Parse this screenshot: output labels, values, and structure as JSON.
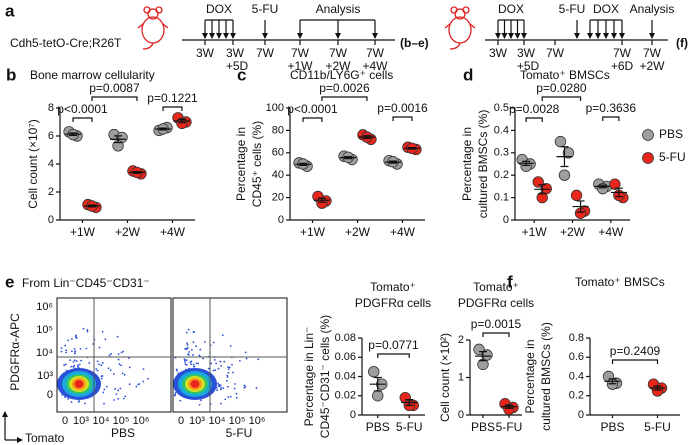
{
  "timeline": {
    "panel": "a",
    "strain": "Cdh5-tetO-Cre;R26T",
    "left": {
      "events": [
        "DOX",
        "5-FU",
        "Analysis"
      ],
      "times": [
        "3W",
        "3W",
        "7W",
        "7W",
        "7W",
        "7W"
      ],
      "offsets": [
        "+5D",
        "+1W",
        "+2W",
        "+4W"
      ],
      "ref": "(b–e)"
    },
    "right": {
      "events": [
        "DOX",
        "5-FU",
        "DOX",
        "Analysis"
      ],
      "times": [
        "3W",
        "3W",
        "7W",
        "7W",
        "7W"
      ],
      "offsets": [
        "+5D",
        "+6D",
        "+2W"
      ],
      "ref": "(f)"
    }
  },
  "flow": {
    "panel": "e",
    "gate": "From Lin⁻CD45⁻CD31⁻",
    "ylabel": "PDGFRα-APC",
    "xlabel": "Tomato",
    "ticks": [
      "0",
      "10³",
      "10⁴",
      "10⁵",
      "10⁶"
    ],
    "samples": [
      "PBS",
      "5-FU"
    ]
  },
  "chart_data": [
    {
      "type": "dot",
      "panel": "b",
      "title": "Bone marrow cellularity",
      "ylabel": [
        "Cell count (×10⁷)"
      ],
      "categories": [
        "+1W",
        "+2W",
        "+4W"
      ],
      "ylim": [
        0,
        8
      ],
      "yticks": [
        0,
        2,
        4,
        6,
        8
      ],
      "series": [
        {
          "color": "#9e9e9e",
          "values": [
            [
              6.3,
              6.0,
              6.1
            ],
            [
              6.1,
              5.9,
              5.3
            ],
            [
              6.4,
              6.6,
              6.5
            ]
          ],
          "means": [
            6.13,
            5.77,
            6.5
          ],
          "errors": [
            0.09,
            0.24,
            0.06
          ]
        },
        {
          "color": "#e8261c",
          "values": [
            [
              1.1,
              0.9,
              1.0
            ],
            [
              3.5,
              3.3,
              3.4
            ],
            [
              7.3,
              7.0,
              6.9
            ]
          ],
          "means": [
            1.0,
            3.4,
            7.07
          ],
          "errors": [
            0.06,
            0.06,
            0.12
          ]
        }
      ],
      "annotations": [
        "p<0.0001",
        "p=0.0087",
        "p=0.1221"
      ]
    },
    {
      "type": "dot",
      "panel": "c",
      "title": "CD11b/LY6G⁺ cells",
      "ylabel": [
        "Percentage in",
        "CD45⁺ cells (%)"
      ],
      "categories": [
        "+1W",
        "+2W",
        "+4W"
      ],
      "ylim": [
        0,
        100
      ],
      "yticks": [
        0,
        20,
        40,
        60,
        80,
        100
      ],
      "series": [
        {
          "color": "#9e9e9e",
          "values": [
            [
              51,
              48,
              50
            ],
            [
              57,
              54,
              56
            ],
            [
              53,
              50,
              52
            ]
          ],
          "means": [
            49.7,
            55.7,
            51.7
          ],
          "errors": [
            0.9,
            0.9,
            0.9
          ]
        },
        {
          "color": "#e8261c",
          "values": [
            [
              21,
              17,
              15
            ],
            [
              76,
              72,
              74
            ],
            [
              65,
              63,
              64
            ]
          ],
          "means": [
            17.7,
            74,
            64
          ],
          "errors": [
            1.8,
            1.2,
            0.6
          ]
        }
      ],
      "annotations": [
        "p<0.0001",
        "p=0.0026",
        "p=0.0016"
      ]
    },
    {
      "type": "dot",
      "panel": "d",
      "title": "Tomato⁺ BMSCs",
      "ylabel": [
        "Percentage in",
        "cultured BMSCs (%)"
      ],
      "categories": [
        "+1W",
        "+2W",
        "+4W"
      ],
      "ylim": [
        0,
        0.5
      ],
      "yticks": [
        0,
        0.1,
        0.2,
        0.3,
        0.4,
        0.5
      ],
      "legend": "right",
      "series": [
        {
          "name": "PBS",
          "color": "#9e9e9e",
          "values": [
            [
              0.27,
              0.25,
              0.24
            ],
            [
              0.35,
              0.3,
              0.2
            ],
            [
              0.16,
              0.15,
              0.14
            ]
          ],
          "means": [
            0.253,
            0.283,
            0.15
          ],
          "errors": [
            0.009,
            0.044,
            0.006
          ]
        },
        {
          "name": "5-FU",
          "color": "#e8261c",
          "values": [
            [
              0.17,
              0.14,
              0.1
            ],
            [
              0.11,
              0.04,
              0.03
            ],
            [
              0.16,
              0.1,
              0.11
            ]
          ],
          "means": [
            0.137,
            0.06,
            0.123
          ],
          "errors": [
            0.02,
            0.025,
            0.019
          ]
        }
      ],
      "annotations": [
        "p=0.0028",
        "p=0.0280",
        "p=0.3636"
      ]
    },
    {
      "type": "dot",
      "title": [
        "Tomato⁺",
        "PDGFRα cells"
      ],
      "ylabel": [
        "Percentage in Lin⁻",
        "CD45⁻CD31⁻ cells (%)"
      ],
      "categories": [
        "PBS",
        "5-FU"
      ],
      "colors": [
        "#9e9e9e",
        "#e8261c"
      ],
      "ylim": [
        0,
        0.08
      ],
      "yticks": [
        0,
        0.02,
        0.04,
        0.06,
        0.08
      ],
      "values": [
        [
          0.045,
          0.032,
          0.02
        ],
        [
          0.018,
          0.01,
          0.01
        ]
      ],
      "means": [
        0.032,
        0.013
      ],
      "errors": [
        0.007,
        0.003
      ],
      "annotations": [
        "p=0.0771"
      ]
    },
    {
      "type": "dot",
      "title": [
        "Tomato⁺",
        "PDGFRα cells"
      ],
      "ylabel": [
        "Cell count (×10²)"
      ],
      "categories": [
        "PBS",
        "5-FU"
      ],
      "colors": [
        "#9e9e9e",
        "#e8261c"
      ],
      "ylim": [
        0,
        2
      ],
      "yticks": [
        0,
        1,
        2
      ],
      "values": [
        [
          1.75,
          1.6,
          1.35
        ],
        [
          0.3,
          0.2,
          0.15
        ]
      ],
      "means": [
        1.57,
        0.22
      ],
      "errors": [
        0.12,
        0.04
      ],
      "annotations": [
        "p=0.0015"
      ]
    },
    {
      "type": "dot",
      "panel": "f",
      "title": "Tomato⁺ BMSCs",
      "ylabel": [
        "Percentage in",
        "cultured BMSCs (%)"
      ],
      "categories": [
        "PBS",
        "5-FU"
      ],
      "colors": [
        "#9e9e9e",
        "#e8261c"
      ],
      "ylim": [
        0,
        0.8
      ],
      "yticks": [
        0,
        0.2,
        0.4,
        0.6,
        0.8
      ],
      "values": [
        [
          0.4,
          0.33,
          0.32
        ],
        [
          0.32,
          0.28,
          0.25
        ]
      ],
      "means": [
        0.35,
        0.28
      ],
      "errors": [
        0.025,
        0.02
      ],
      "annotations": [
        "p=0.2409"
      ]
    }
  ]
}
